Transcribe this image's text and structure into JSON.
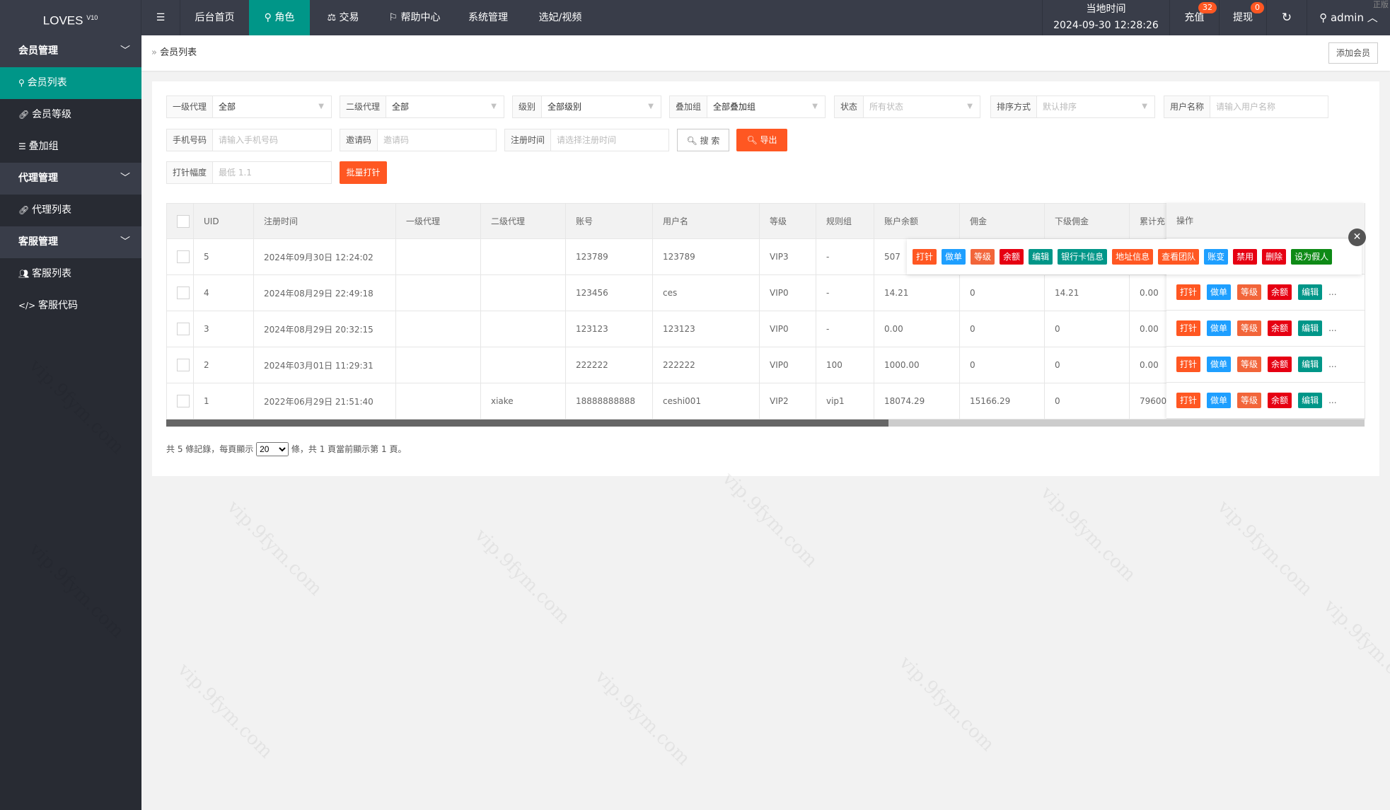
{
  "header": {
    "logo": "LOVES",
    "version": "V10",
    "menu_icon": "hamburger-icon",
    "nav": [
      {
        "label": "后台首页",
        "icon": ""
      },
      {
        "label": "角色",
        "icon": "user-icon"
      },
      {
        "label": "交易",
        "icon": "scale-icon"
      },
      {
        "label": "帮助中心",
        "icon": "flag-icon"
      },
      {
        "label": "系统管理",
        "icon": ""
      },
      {
        "label": "选妃/视频",
        "icon": ""
      }
    ],
    "time_label": "当地时间",
    "time_value": "2024-09-30 12:28:26",
    "recharge": "充值",
    "recharge_badge": "32",
    "withdraw": "提现",
    "withdraw_badge": "0",
    "user": "admin",
    "corner": "正版"
  },
  "sidebar": [
    {
      "label": "会员管理",
      "group": true
    },
    {
      "label": "会员列表",
      "icon": "user-icon",
      "active": true
    },
    {
      "label": "会员等级",
      "icon": "link-icon"
    },
    {
      "label": "叠加组",
      "icon": "list-icon"
    },
    {
      "label": "代理管理",
      "group": true
    },
    {
      "label": "代理列表",
      "icon": "link-icon"
    },
    {
      "label": "客服管理",
      "group": true
    },
    {
      "label": "客服列表",
      "icon": "users-icon"
    },
    {
      "label": "客服代码",
      "icon": "code-icon"
    }
  ],
  "breadcrumb": "会员列表",
  "add_member": "添加会员",
  "filters": {
    "agent1": {
      "label": "一级代理",
      "value": "全部"
    },
    "agent2": {
      "label": "二级代理",
      "value": "全部"
    },
    "level": {
      "label": "级别",
      "value": "全部级别"
    },
    "group": {
      "label": "叠加组",
      "value": "全部叠加组"
    },
    "status": {
      "label": "状态",
      "value": "所有状态"
    },
    "sort": {
      "label": "排序方式",
      "value": "默认排序"
    },
    "username": {
      "label": "用户名称",
      "placeholder": "请输入用户名称"
    },
    "phone": {
      "label": "手机号码",
      "placeholder": "请输入手机号码"
    },
    "invite": {
      "label": "邀请码",
      "placeholder": "邀请码"
    },
    "regtime": {
      "label": "注册时间",
      "placeholder": "请选择注册时间"
    },
    "search": "搜 索",
    "export": "导出",
    "amp": {
      "label": "打针幅度",
      "placeholder": "最低 1.1"
    },
    "batch": "批量打针"
  },
  "table": {
    "columns": [
      "UID",
      "注册时间",
      "一级代理",
      "二级代理",
      "账号",
      "用户名",
      "等级",
      "规则组",
      "账户余额",
      "佣金",
      "下级佣金",
      "累计充",
      "操作"
    ],
    "rows": [
      [
        "5",
        "2024年09月30日 12:24:02",
        "",
        "",
        "123789",
        "123789",
        "VIP3",
        "-",
        "507",
        "",
        "",
        "",
        ""
      ],
      [
        "4",
        "2024年08月29日 22:49:18",
        "",
        "",
        "123456",
        "ces",
        "VIP0",
        "-",
        "14.21",
        "0",
        "14.21",
        "0.00"
      ],
      [
        "3",
        "2024年08月29日 20:32:15",
        "",
        "",
        "123123",
        "123123",
        "VIP0",
        "-",
        "0.00",
        "0",
        "0",
        "0.00"
      ],
      [
        "2",
        "2024年03月01日 11:29:31",
        "",
        "",
        "222222",
        "222222",
        "VIP0",
        "100",
        "1000.00",
        "0",
        "0",
        "0.00"
      ],
      [
        "1",
        "2022年06月29日 21:51:40",
        "",
        "xiake",
        "18888888888",
        "ceshi001",
        "VIP2",
        "vip1",
        "18074.29",
        "15166.29",
        "0",
        "79600"
      ]
    ],
    "row_actions": [
      {
        "label": "打针",
        "color": "#FF5722"
      },
      {
        "label": "做单",
        "color": "#1E9FFF"
      },
      {
        "label": "等级",
        "color": "#F2653A"
      },
      {
        "label": "余额",
        "color": "#E60012"
      },
      {
        "label": "编辑",
        "color": "#009688"
      }
    ],
    "more": "...",
    "popup_actions": [
      {
        "label": "打针",
        "color": "#FF5722"
      },
      {
        "label": "做单",
        "color": "#1E9FFF"
      },
      {
        "label": "等级",
        "color": "#F2653A"
      },
      {
        "label": "余额",
        "color": "#E60012"
      },
      {
        "label": "编辑",
        "color": "#009688"
      },
      {
        "label": "银行卡信息",
        "color": "#009688"
      },
      {
        "label": "地址信息",
        "color": "#FF5722"
      },
      {
        "label": "查看团队",
        "color": "#FF5722"
      },
      {
        "label": "账变",
        "color": "#1E9FFF"
      },
      {
        "label": "禁用",
        "color": "#E60012"
      },
      {
        "label": "删除",
        "color": "#E60012"
      },
      {
        "label": "设为假人",
        "color": "#0E8A16"
      }
    ]
  },
  "pagination": {
    "pre": "共 5 條記錄，每頁顯示",
    "per_page": "20",
    "post": "條，共 1 頁當前顯示第 1 頁。"
  },
  "watermark": "vip.9fym.com",
  "colors": {
    "accent": "#009688",
    "topbar": "#393D49",
    "sidebar": "#282B33"
  }
}
